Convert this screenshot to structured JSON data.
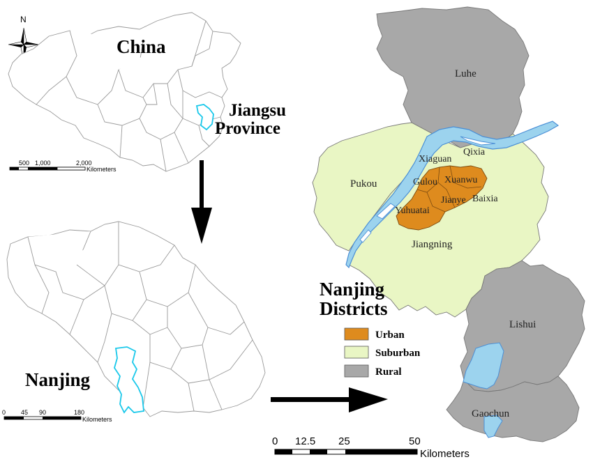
{
  "compass": {
    "north_label": "N"
  },
  "china_map": {
    "title": "China",
    "highlight_label_line1": "Jiangsu",
    "highlight_label_line2": "Province",
    "scale": {
      "ticks": [
        "500",
        "1,000",
        "2,000"
      ],
      "unit": "Kilometers"
    }
  },
  "jiangsu_map": {
    "highlight_label": "Nanjing",
    "scale": {
      "ticks": [
        "0",
        "45",
        "90",
        "180"
      ],
      "unit": "Kilometers"
    }
  },
  "nanjing_map": {
    "title_line1": "Nanjing",
    "title_line2": "Districts",
    "districts": {
      "luhe": "Luhe",
      "pukou": "Pukou",
      "xiaguan": "Xiaguan",
      "qixia": "Qixia",
      "gulou": "Gulou",
      "xuanwu": "Xuanwu",
      "jianye": "Jianye",
      "baixia": "Baixia",
      "yuhuatai": "Yuhuatai",
      "jiangning": "Jiangning",
      "lishui": "Lishui",
      "gaochun": "Gaochun"
    },
    "legend": [
      {
        "label": "Urban",
        "color": "#de8b1e"
      },
      {
        "label": "Suburban",
        "color": "#e9f6c4"
      },
      {
        "label": "Rural",
        "color": "#a8a8a8"
      }
    ],
    "scale": {
      "ticks": [
        "0",
        "12.5",
        "25",
        "50"
      ],
      "unit": "Kilometers"
    }
  },
  "colors": {
    "highlight_outline": "#19c8ea",
    "water": "#9cd3ee",
    "water_outline": "#4a8fd6",
    "border": "#9a9a9a"
  }
}
